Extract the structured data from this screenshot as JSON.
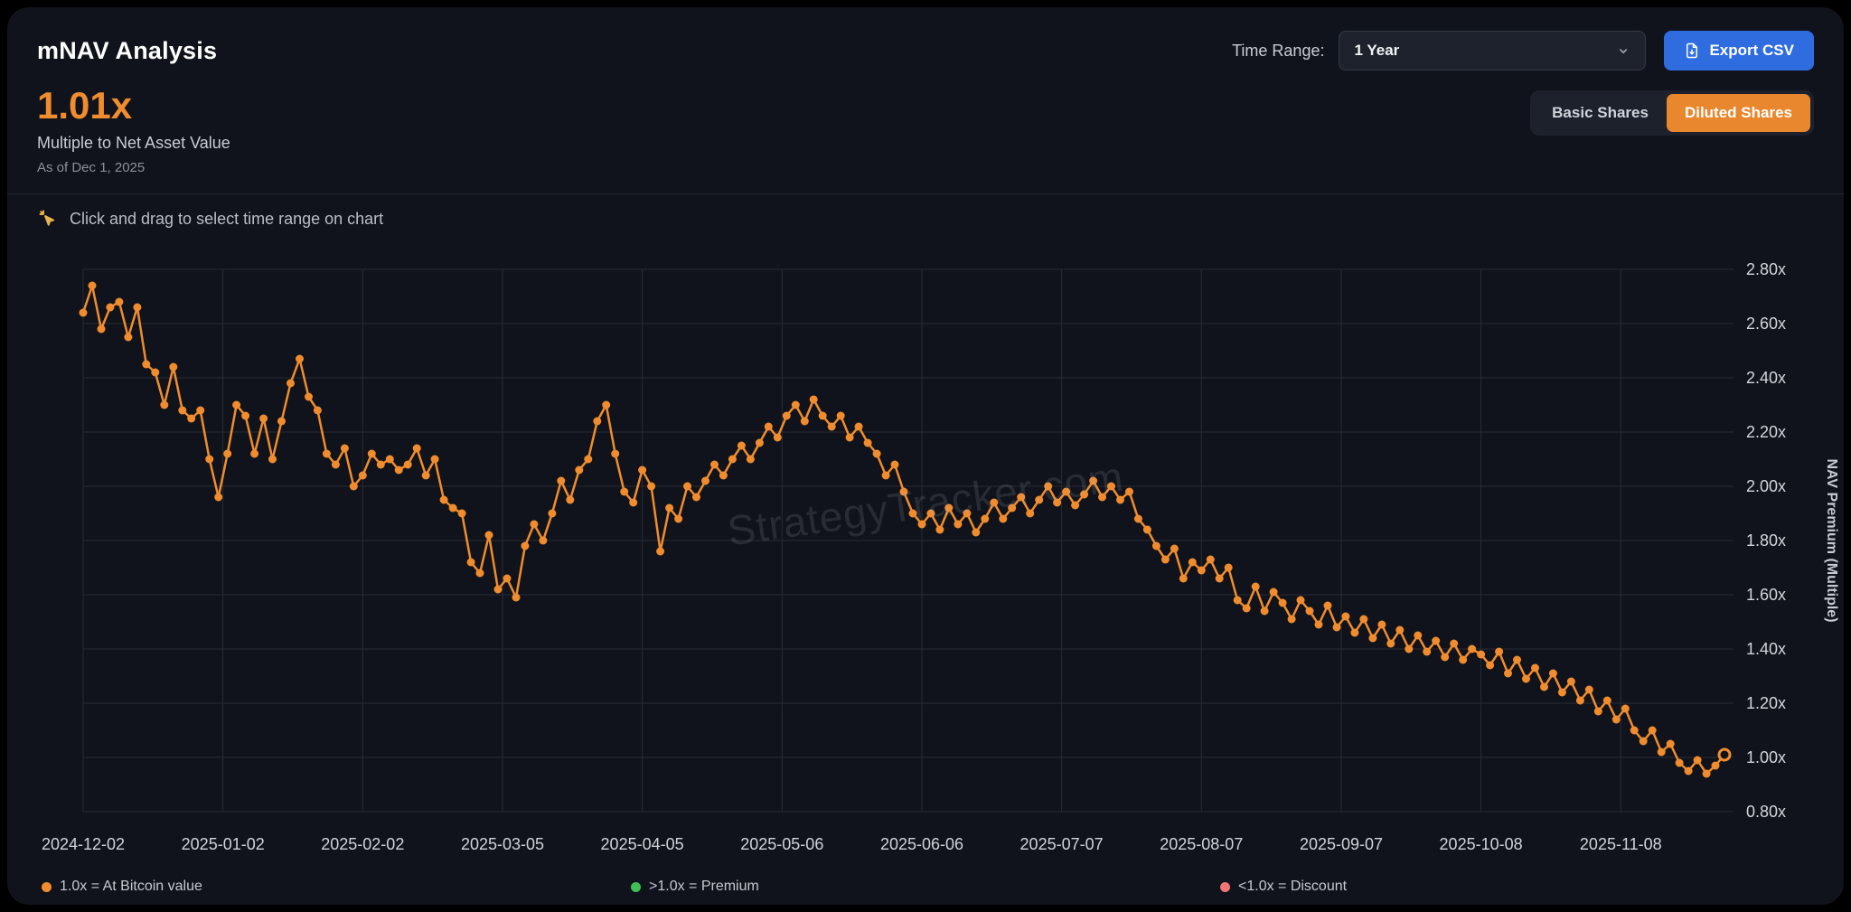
{
  "header": {
    "title": "mNAV Analysis",
    "time_range_label": "Time Range:",
    "time_range_value": "1 Year",
    "export_label": "Export CSV",
    "chevron_glyph": "⌄"
  },
  "summary": {
    "value": "1.01x",
    "label": "Multiple to Net Asset Value",
    "as_of": "As of Dec 1, 2025"
  },
  "share_toggle": {
    "basic_label": "Basic Shares",
    "diluted_label": "Diluted Shares",
    "active": "diluted"
  },
  "hint_text": "Click and drag to select time range on chart",
  "watermark": "StrategyTracker.com",
  "icons": [
    "click-drag-icon",
    "file-download-icon",
    "chevron-down-icon"
  ],
  "colors": {
    "accent_orange": "#f08c2e",
    "button_blue": "#2f6ce0",
    "premium_green": "#3fbf54",
    "discount_red": "#f07575",
    "grid": "#272b35",
    "card_bg": "#10131b"
  },
  "legend": [
    {
      "label": "1.0x = At Bitcoin value",
      "color": "#f08c2e"
    },
    {
      "label": ">1.0x = Premium",
      "color": "#3fbf54"
    },
    {
      "label": "<1.0x = Discount",
      "color": "#f07575"
    }
  ],
  "chart_data": {
    "type": "line",
    "title": "mNAV multiple to net asset value over 1 year",
    "xlabel": "",
    "ylabel": "NAV Premium (Multiple)",
    "ylim": [
      0.8,
      2.8
    ],
    "grid": true,
    "legend_position": "bottom",
    "y_ticks": [
      "0.80x",
      "1.00x",
      "1.20x",
      "1.40x",
      "1.60x",
      "1.80x",
      "2.00x",
      "2.20x",
      "2.40x",
      "2.60x",
      "2.80x"
    ],
    "x_ticks": [
      {
        "day": 0,
        "label": "2024-12-02"
      },
      {
        "day": 31,
        "label": "2025-01-02"
      },
      {
        "day": 62,
        "label": "2025-02-02"
      },
      {
        "day": 93,
        "label": "2025-03-05"
      },
      {
        "day": 124,
        "label": "2025-04-05"
      },
      {
        "day": 155,
        "label": "2025-05-06"
      },
      {
        "day": 186,
        "label": "2025-06-06"
      },
      {
        "day": 217,
        "label": "2025-07-07"
      },
      {
        "day": 248,
        "label": "2025-08-07"
      },
      {
        "day": 279,
        "label": "2025-09-07"
      },
      {
        "day": 310,
        "label": "2025-10-08"
      },
      {
        "day": 341,
        "label": "2025-11-08"
      }
    ],
    "x_max_days": 366,
    "start_date": "2024-12-02",
    "end_date": "2025-12-01",
    "step_days": 2,
    "series_color": "#f08c2e",
    "values": [
      2.64,
      2.74,
      2.58,
      2.66,
      2.68,
      2.55,
      2.66,
      2.45,
      2.42,
      2.3,
      2.44,
      2.28,
      2.25,
      2.28,
      2.1,
      1.96,
      2.12,
      2.3,
      2.26,
      2.12,
      2.25,
      2.1,
      2.24,
      2.38,
      2.47,
      2.33,
      2.28,
      2.12,
      2.08,
      2.14,
      2.0,
      2.04,
      2.12,
      2.08,
      2.1,
      2.06,
      2.08,
      2.14,
      2.04,
      2.1,
      1.95,
      1.92,
      1.9,
      1.72,
      1.68,
      1.82,
      1.62,
      1.66,
      1.59,
      1.78,
      1.86,
      1.8,
      1.9,
      2.02,
      1.95,
      2.06,
      2.1,
      2.24,
      2.3,
      2.12,
      1.98,
      1.94,
      2.06,
      2.0,
      1.76,
      1.92,
      1.88,
      2.0,
      1.96,
      2.02,
      2.08,
      2.04,
      2.1,
      2.15,
      2.1,
      2.16,
      2.22,
      2.18,
      2.26,
      2.3,
      2.24,
      2.32,
      2.26,
      2.22,
      2.26,
      2.18,
      2.22,
      2.16,
      2.12,
      2.04,
      2.08,
      1.98,
      1.9,
      1.86,
      1.9,
      1.84,
      1.92,
      1.86,
      1.9,
      1.83,
      1.88,
      1.94,
      1.88,
      1.92,
      1.96,
      1.9,
      1.95,
      2.0,
      1.94,
      1.98,
      1.93,
      1.97,
      2.02,
      1.96,
      2.0,
      1.95,
      1.98,
      1.88,
      1.84,
      1.78,
      1.73,
      1.77,
      1.66,
      1.72,
      1.69,
      1.73,
      1.66,
      1.7,
      1.58,
      1.55,
      1.63,
      1.54,
      1.61,
      1.57,
      1.51,
      1.58,
      1.54,
      1.49,
      1.56,
      1.48,
      1.52,
      1.46,
      1.51,
      1.44,
      1.49,
      1.42,
      1.47,
      1.4,
      1.45,
      1.39,
      1.43,
      1.37,
      1.42,
      1.36,
      1.4,
      1.38,
      1.34,
      1.39,
      1.31,
      1.36,
      1.29,
      1.33,
      1.26,
      1.31,
      1.24,
      1.28,
      1.21,
      1.25,
      1.17,
      1.21,
      1.14,
      1.18,
      1.1,
      1.06,
      1.1,
      1.02,
      1.05,
      0.98,
      0.95,
      0.99,
      0.94,
      0.97,
      1.01
    ]
  }
}
